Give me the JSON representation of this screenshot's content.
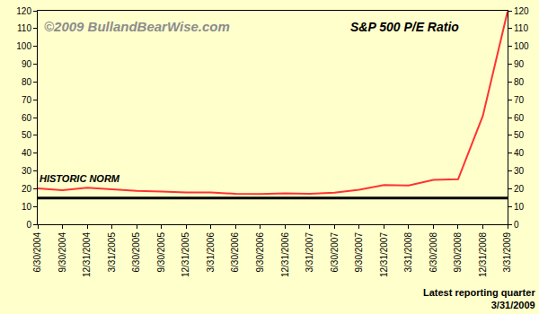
{
  "chart_data": {
    "type": "line",
    "title": "S&P 500 P/E Ratio",
    "source": "©2009 BullandBearWise.com",
    "footnote": [
      "Latest reporting quarter",
      "3/31/2009"
    ],
    "categories": [
      "6/30/2004",
      "9/30/2004",
      "12/31/2004",
      "3/31/2005",
      "6/30/2005",
      "9/30/2005",
      "12/31/2005",
      "3/31/2006",
      "6/30/2006",
      "9/30/2006",
      "12/31/2006",
      "3/31/2007",
      "6/30/2007",
      "9/30/2007",
      "12/31/2007",
      "3/31/2008",
      "6/30/2008",
      "9/30/2008",
      "12/31/2008",
      "3/31/2009"
    ],
    "values": [
      20.2,
      19.2,
      20.5,
      19.5,
      18.8,
      18.4,
      17.9,
      17.9,
      17.1,
      17.0,
      17.4,
      17.1,
      17.8,
      19.4,
      22.1,
      21.8,
      24.9,
      25.3,
      60.9,
      119.6
    ],
    "color": "#FF3333",
    "hline": {
      "label": "HISTORIC NORM",
      "value": 14.8,
      "color": "#000000"
    },
    "ylim": [
      0,
      120
    ],
    "yticks": [
      0,
      10,
      20,
      30,
      40,
      50,
      60,
      70,
      80,
      90,
      100,
      110,
      120
    ],
    "y2lim": [
      0,
      120
    ],
    "y2ticks": [
      0,
      10,
      20,
      30,
      40,
      50,
      60,
      70,
      80,
      90,
      100,
      110,
      120
    ],
    "grid": false
  }
}
